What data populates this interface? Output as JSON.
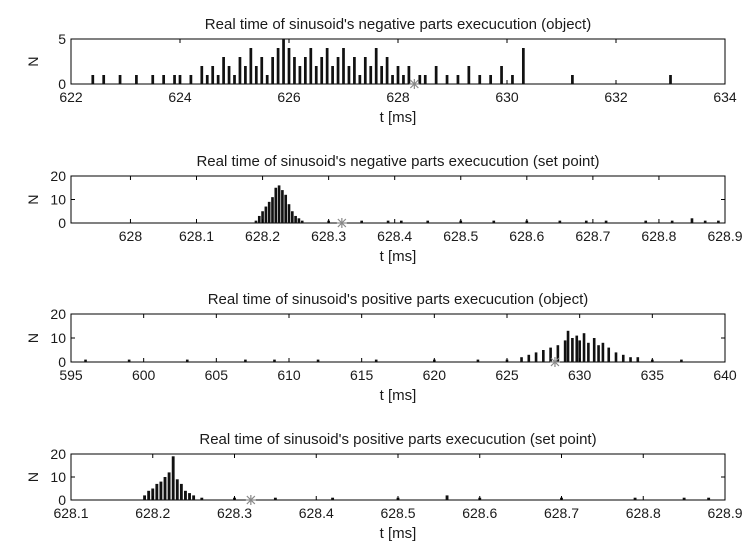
{
  "chart_data": [
    {
      "type": "bar",
      "title": "Real time of sinusoid's negative parts execucution (object)",
      "xlabel": "t [ms]",
      "ylabel": "N",
      "xlim": [
        622,
        634
      ],
      "ylim": [
        0,
        5
      ],
      "xticks": [
        "622",
        "624",
        "626",
        "628",
        "630",
        "632",
        "634"
      ],
      "yticks": [
        "0",
        "5"
      ],
      "marker_x": 628.3,
      "bar_width": 0.05,
      "x": [
        622.4,
        622.6,
        622.9,
        623.2,
        623.5,
        623.7,
        623.9,
        624.0,
        624.2,
        624.4,
        624.5,
        624.6,
        624.7,
        624.8,
        624.9,
        625.0,
        625.1,
        625.2,
        625.3,
        625.4,
        625.5,
        625.6,
        625.7,
        625.8,
        625.9,
        626.0,
        626.1,
        626.2,
        626.3,
        626.4,
        626.5,
        626.6,
        626.7,
        626.8,
        626.9,
        627.0,
        627.1,
        627.2,
        627.3,
        627.4,
        627.5,
        627.6,
        627.7,
        627.8,
        627.9,
        628.0,
        628.1,
        628.2,
        628.4,
        628.5,
        628.7,
        628.9,
        629.1,
        629.3,
        629.5,
        629.7,
        629.9,
        630.1,
        630.3,
        631.2,
        633.0
      ],
      "values": [
        1,
        1,
        1,
        1,
        1,
        1,
        1,
        1,
        1,
        2,
        1,
        2,
        1,
        3,
        2,
        1,
        3,
        2,
        4,
        2,
        3,
        1,
        3,
        4,
        5,
        4,
        3,
        2,
        3,
        4,
        2,
        3,
        4,
        2,
        3,
        4,
        2,
        3,
        1,
        3,
        2,
        4,
        2,
        3,
        1,
        2,
        1,
        2,
        1,
        1,
        2,
        1,
        1,
        2,
        1,
        1,
        2,
        1,
        4,
        1,
        1
      ]
    },
    {
      "type": "bar",
      "title": "Real time of sinusoid's negative parts execucution (set point)",
      "xlabel": "t [ms]",
      "ylabel": "N",
      "xlim": [
        627.91,
        628.9
      ],
      "ylim": [
        0,
        20
      ],
      "xticks": [
        "628",
        "628.1",
        "628.2",
        "628.3",
        "628.4",
        "628.5",
        "628.6",
        "628.7",
        "628.8",
        "628.9"
      ],
      "yticks": [
        "0",
        "10",
        "20"
      ],
      "marker_x": 628.32,
      "bar_width": 0.004,
      "x": [
        628.19,
        628.195,
        628.2,
        628.205,
        628.21,
        628.215,
        628.22,
        628.225,
        628.23,
        628.235,
        628.24,
        628.245,
        628.25,
        628.255,
        628.26,
        628.3,
        628.35,
        628.39,
        628.41,
        628.45,
        628.5,
        628.55,
        628.6,
        628.65,
        628.69,
        628.72,
        628.78,
        628.82,
        628.85,
        628.87,
        628.89
      ],
      "values": [
        1,
        3,
        5,
        7,
        9,
        11,
        15,
        16,
        14,
        12,
        8,
        5,
        3,
        2,
        1,
        1,
        1,
        1,
        1,
        1,
        1,
        1,
        1,
        1,
        1,
        1,
        1,
        1,
        2,
        1,
        1
      ]
    },
    {
      "type": "bar",
      "title": "Real time of sinusoid's positive parts execucution (object)",
      "xlabel": "t [ms]",
      "ylabel": "N",
      "xlim": [
        595,
        640
      ],
      "ylim": [
        0,
        20
      ],
      "xticks": [
        "595",
        "600",
        "605",
        "610",
        "615",
        "620",
        "625",
        "630",
        "635",
        "640"
      ],
      "yticks": [
        "0",
        "10",
        "20"
      ],
      "marker_x": 628.3,
      "bar_width": 0.18,
      "x": [
        596,
        599,
        603,
        607,
        609,
        612,
        616,
        620,
        623,
        625,
        626,
        626.5,
        627,
        627.5,
        628,
        628.5,
        629,
        629.2,
        629.5,
        629.8,
        630,
        630.3,
        630.6,
        631,
        631.3,
        631.6,
        632,
        632.5,
        633,
        633.5,
        634,
        635,
        637
      ],
      "values": [
        1,
        1,
        1,
        1,
        1,
        1,
        1,
        1,
        1,
        1,
        2,
        3,
        4,
        5,
        6,
        7,
        9,
        13,
        10,
        11,
        9,
        12,
        8,
        10,
        7,
        8,
        6,
        4,
        3,
        2,
        2,
        1,
        1
      ]
    },
    {
      "type": "bar",
      "title": "Real time of sinusoid's positive parts execucution (set point)",
      "xlabel": "t [ms]",
      "ylabel": "N",
      "xlim": [
        628.1,
        628.9
      ],
      "ylim": [
        0,
        20
      ],
      "xticks": [
        "628.1",
        "628.2",
        "628.3",
        "628.4",
        "628.5",
        "628.6",
        "628.7",
        "628.8",
        "628.9"
      ],
      "yticks": [
        "0",
        "10",
        "20"
      ],
      "marker_x": 628.32,
      "bar_width": 0.0035,
      "x": [
        628.19,
        628.195,
        628.2,
        628.205,
        628.21,
        628.215,
        628.22,
        628.225,
        628.23,
        628.235,
        628.24,
        628.245,
        628.25,
        628.26,
        628.3,
        628.35,
        628.42,
        628.5,
        628.56,
        628.6,
        628.7,
        628.79,
        628.85,
        628.88
      ],
      "values": [
        2,
        4,
        5,
        7,
        8,
        10,
        12,
        19,
        9,
        7,
        4,
        3,
        2,
        1,
        1,
        1,
        1,
        1,
        2,
        1,
        1,
        1,
        1,
        1
      ]
    }
  ]
}
